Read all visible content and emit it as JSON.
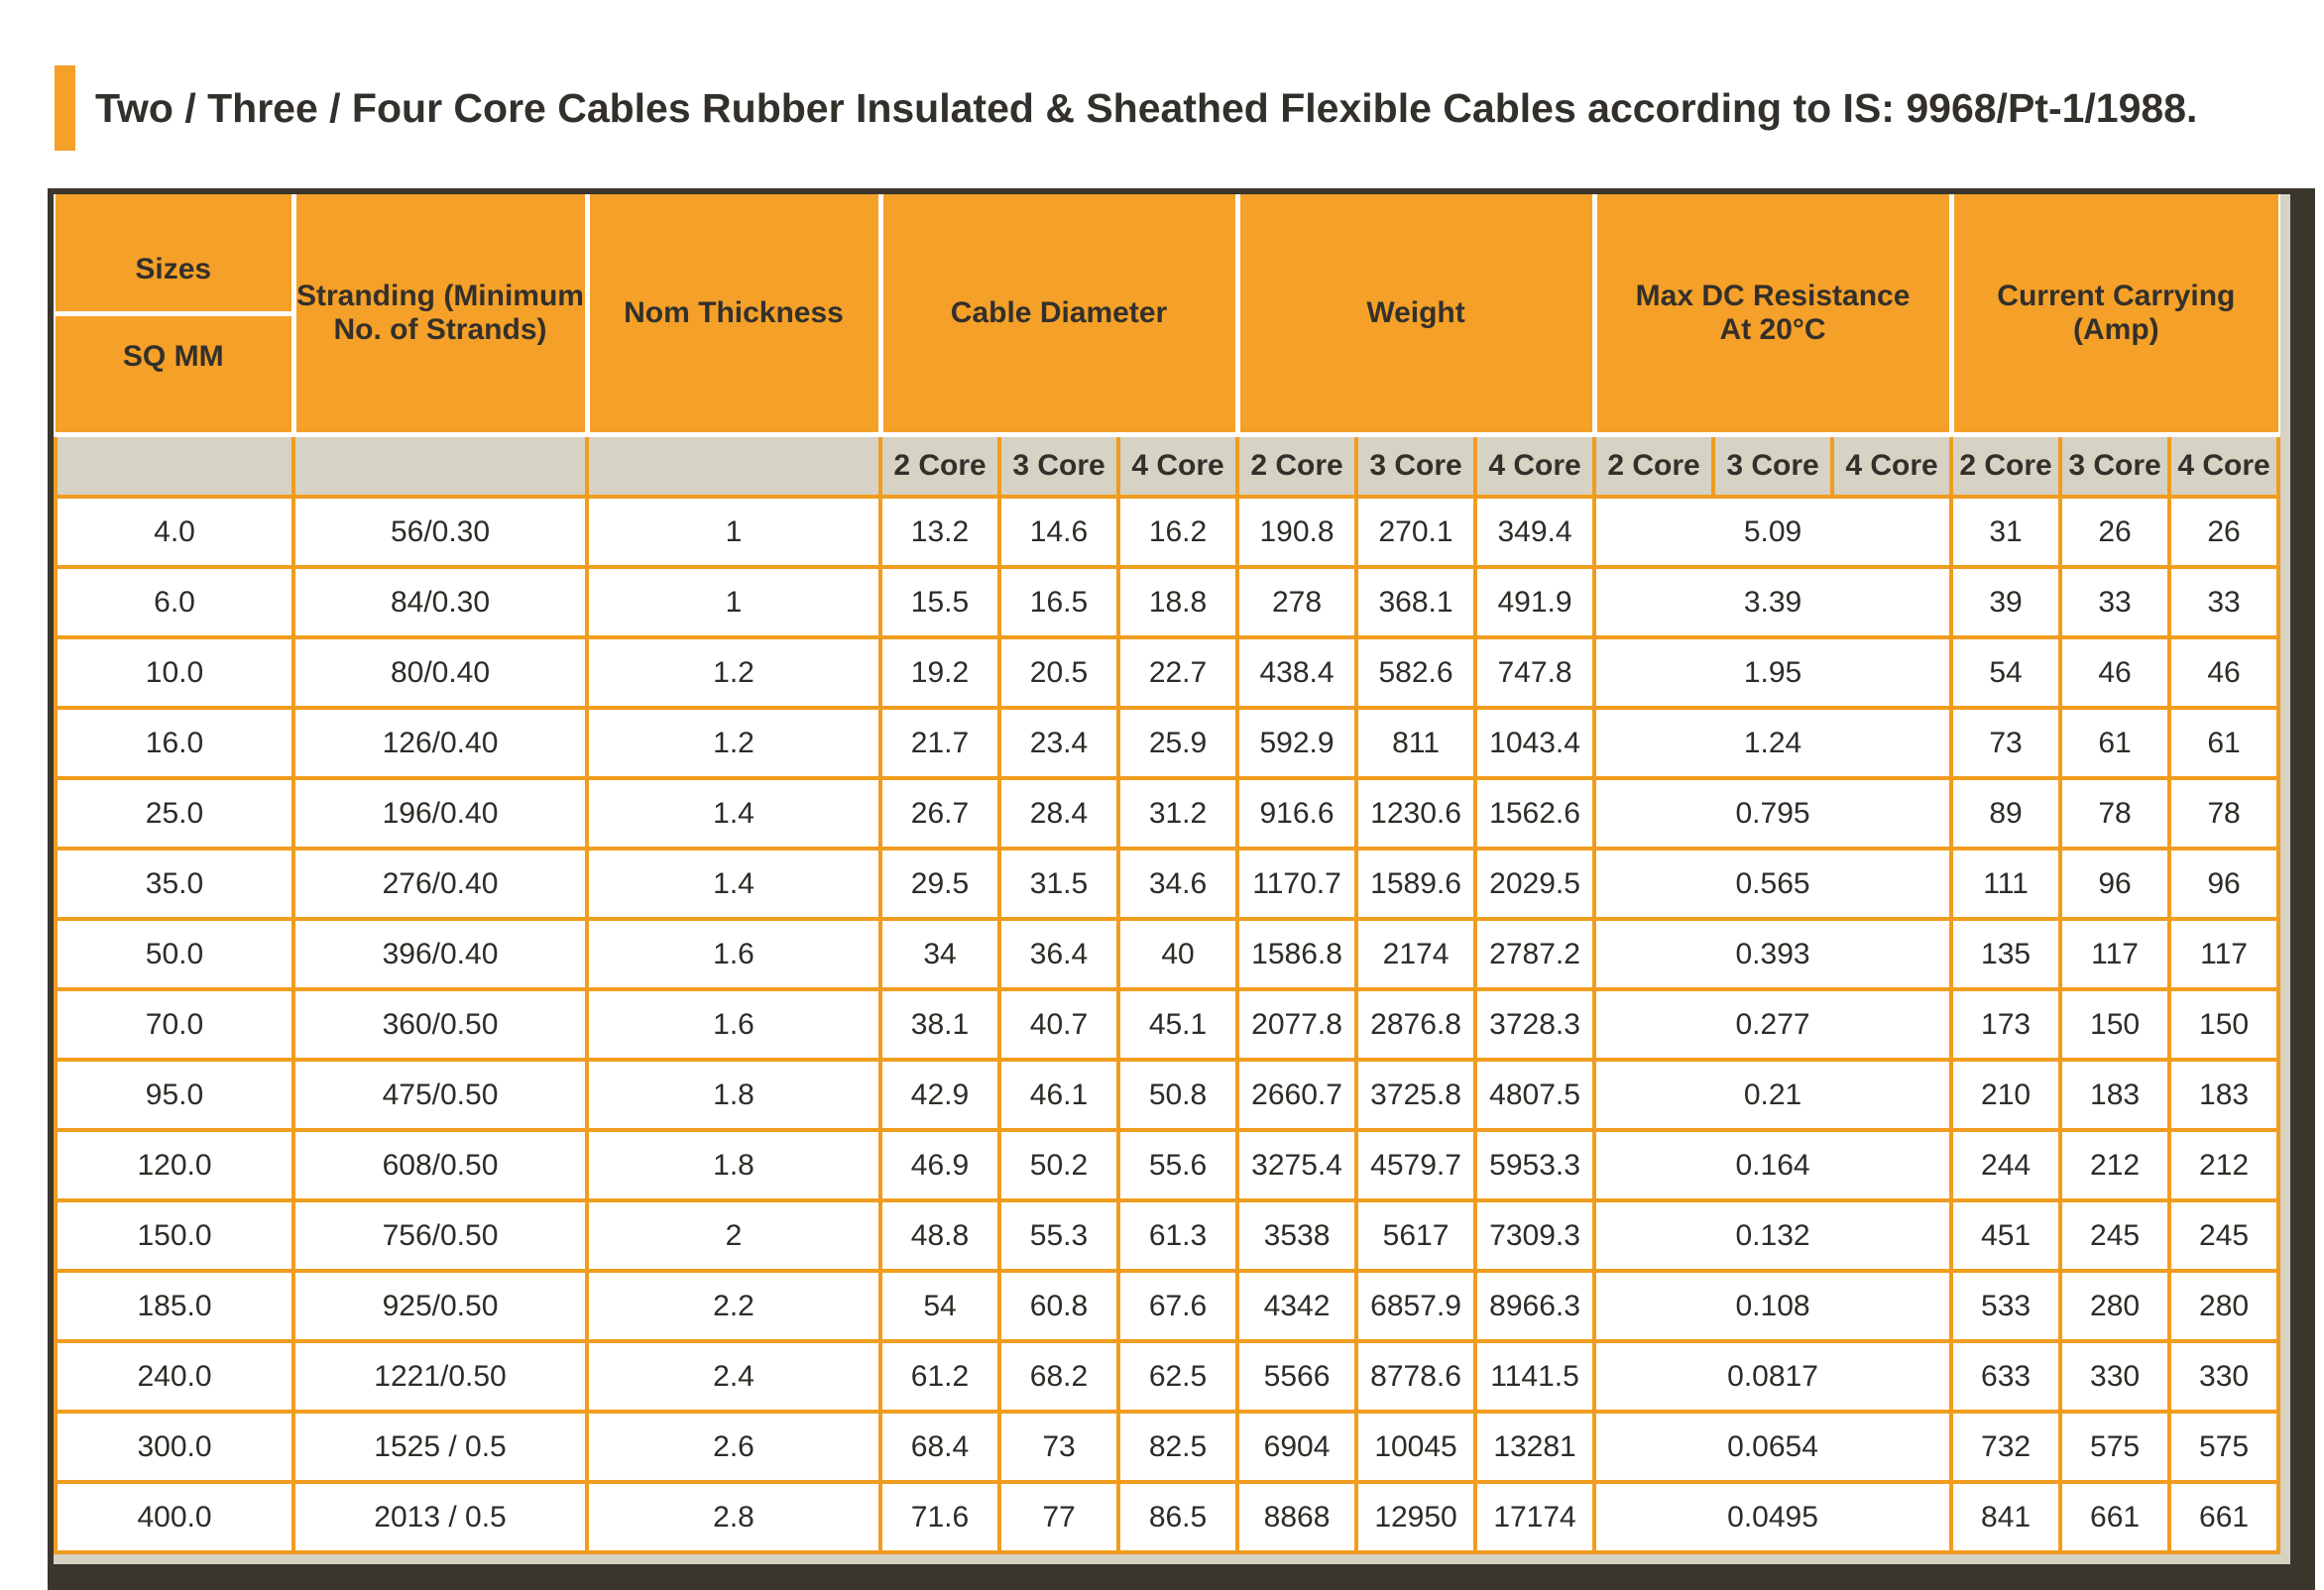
{
  "page": {
    "title": "Two / Three / Four Core Cables Rubber Insulated & Sheathed Flexible Cables according to IS: 9968/Pt-1/1988."
  },
  "colors": {
    "accent_orange": "#F5A028",
    "grid_orange": "#F09C1E",
    "subheader_bg": "#D6D2C4",
    "frame_dark": "#3A352D",
    "text_dark": "#2F2B26"
  },
  "table": {
    "header": {
      "sizes_label": "Sizes",
      "sizes_unit": "SQ MM",
      "stranding": "Stranding (Minimum\nNo. of Strands)",
      "nom_thickness": "Nom Thickness",
      "cable_diameter": "Cable Diameter",
      "weight": "Weight",
      "max_dc_resistance": "Max DC Resistance\nAt 20°C",
      "current_carrying": "Current Carrying\n(Amp)",
      "core_labels": [
        "2 Core",
        "3 Core",
        "4 Core"
      ]
    },
    "rows": [
      {
        "size": "4.0",
        "stranding": "56/0.30",
        "nom_thickness": "1",
        "diameter": [
          "13.2",
          "14.6",
          "16.2"
        ],
        "weight": [
          "190.8",
          "270.1",
          "349.4"
        ],
        "resistance": "5.09",
        "current": [
          "31",
          "26",
          "26"
        ]
      },
      {
        "size": "6.0",
        "stranding": "84/0.30",
        "nom_thickness": "1",
        "diameter": [
          "15.5",
          "16.5",
          "18.8"
        ],
        "weight": [
          "278",
          "368.1",
          "491.9"
        ],
        "resistance": "3.39",
        "current": [
          "39",
          "33",
          "33"
        ]
      },
      {
        "size": "10.0",
        "stranding": "80/0.40",
        "nom_thickness": "1.2",
        "diameter": [
          "19.2",
          "20.5",
          "22.7"
        ],
        "weight": [
          "438.4",
          "582.6",
          "747.8"
        ],
        "resistance": "1.95",
        "current": [
          "54",
          "46",
          "46"
        ]
      },
      {
        "size": "16.0",
        "stranding": "126/0.40",
        "nom_thickness": "1.2",
        "diameter": [
          "21.7",
          "23.4",
          "25.9"
        ],
        "weight": [
          "592.9",
          "811",
          "1043.4"
        ],
        "resistance": "1.24",
        "current": [
          "73",
          "61",
          "61"
        ]
      },
      {
        "size": "25.0",
        "stranding": "196/0.40",
        "nom_thickness": "1.4",
        "diameter": [
          "26.7",
          "28.4",
          "31.2"
        ],
        "weight": [
          "916.6",
          "1230.6",
          "1562.6"
        ],
        "resistance": "0.795",
        "current": [
          "89",
          "78",
          "78"
        ]
      },
      {
        "size": "35.0",
        "stranding": "276/0.40",
        "nom_thickness": "1.4",
        "diameter": [
          "29.5",
          "31.5",
          "34.6"
        ],
        "weight": [
          "1170.7",
          "1589.6",
          "2029.5"
        ],
        "resistance": "0.565",
        "current": [
          "111",
          "96",
          "96"
        ]
      },
      {
        "size": "50.0",
        "stranding": "396/0.40",
        "nom_thickness": "1.6",
        "diameter": [
          "34",
          "36.4",
          "40"
        ],
        "weight": [
          "1586.8",
          "2174",
          "2787.2"
        ],
        "resistance": "0.393",
        "current": [
          "135",
          "117",
          "117"
        ]
      },
      {
        "size": "70.0",
        "stranding": "360/0.50",
        "nom_thickness": "1.6",
        "diameter": [
          "38.1",
          "40.7",
          "45.1"
        ],
        "weight": [
          "2077.8",
          "2876.8",
          "3728.3"
        ],
        "resistance": "0.277",
        "current": [
          "173",
          "150",
          "150"
        ]
      },
      {
        "size": "95.0",
        "stranding": "475/0.50",
        "nom_thickness": "1.8",
        "diameter": [
          "42.9",
          "46.1",
          "50.8"
        ],
        "weight": [
          "2660.7",
          "3725.8",
          "4807.5"
        ],
        "resistance": "0.21",
        "current": [
          "210",
          "183",
          "183"
        ]
      },
      {
        "size": "120.0",
        "stranding": "608/0.50",
        "nom_thickness": "1.8",
        "diameter": [
          "46.9",
          "50.2",
          "55.6"
        ],
        "weight": [
          "3275.4",
          "4579.7",
          "5953.3"
        ],
        "resistance": "0.164",
        "current": [
          "244",
          "212",
          "212"
        ]
      },
      {
        "size": "150.0",
        "stranding": "756/0.50",
        "nom_thickness": "2",
        "diameter": [
          "48.8",
          "55.3",
          "61.3"
        ],
        "weight": [
          "3538",
          "5617",
          "7309.3"
        ],
        "resistance": "0.132",
        "current": [
          "451",
          "245",
          "245"
        ]
      },
      {
        "size": "185.0",
        "stranding": "925/0.50",
        "nom_thickness": "2.2",
        "diameter": [
          "54",
          "60.8",
          "67.6"
        ],
        "weight": [
          "4342",
          "6857.9",
          "8966.3"
        ],
        "resistance": "0.108",
        "current": [
          "533",
          "280",
          "280"
        ]
      },
      {
        "size": "240.0",
        "stranding": "1221/0.50",
        "nom_thickness": "2.4",
        "diameter": [
          "61.2",
          "68.2",
          "62.5"
        ],
        "weight": [
          "5566",
          "8778.6",
          "1141.5"
        ],
        "resistance": "0.0817",
        "current": [
          "633",
          "330",
          "330"
        ]
      },
      {
        "size": "300.0",
        "stranding": "1525 / 0.5",
        "nom_thickness": "2.6",
        "diameter": [
          "68.4",
          "73",
          "82.5"
        ],
        "weight": [
          "6904",
          "10045",
          "13281"
        ],
        "resistance": "0.0654",
        "current": [
          "732",
          "575",
          "575"
        ]
      },
      {
        "size": "400.0",
        "stranding": "2013 / 0.5",
        "nom_thickness": "2.8",
        "diameter": [
          "71.6",
          "77",
          "86.5"
        ],
        "weight": [
          "8868",
          "12950",
          "17174"
        ],
        "resistance": "0.0495",
        "current": [
          "841",
          "661",
          "661"
        ]
      }
    ]
  }
}
